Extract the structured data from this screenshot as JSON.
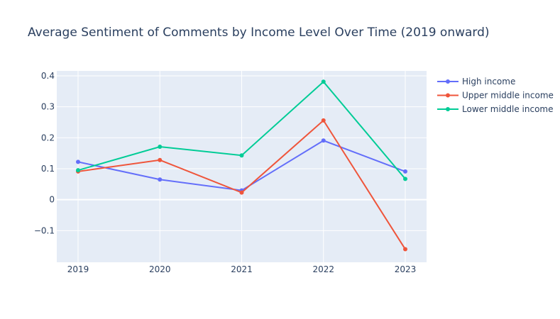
{
  "chart_data": {
    "type": "line",
    "title": "Average Sentiment of Comments by Income Level Over Time (2019 onward)",
    "xlabel": "",
    "ylabel": "",
    "x": [
      "2019",
      "2020",
      "2021",
      "2022",
      "2023"
    ],
    "ylim": [
      -0.2,
      0.42
    ],
    "yticks": [
      -0.1,
      0,
      0.1,
      0.2,
      0.3,
      0.4
    ],
    "ytick_labels": [
      "−0.1",
      "0",
      "0.1",
      "0.2",
      "0.3",
      "0.4"
    ],
    "grid": true,
    "legend_position": "top-right",
    "plot_background": "#e5ecf6",
    "series": [
      {
        "name": "High income",
        "color": "#636efa",
        "values": [
          0.122,
          0.065,
          0.03,
          0.191,
          0.091
        ]
      },
      {
        "name": "Upper middle income",
        "color": "#ef553b",
        "values": [
          0.091,
          0.128,
          0.023,
          0.256,
          -0.16
        ]
      },
      {
        "name": "Lower middle income",
        "color": "#00cc96",
        "values": [
          0.095,
          0.171,
          0.143,
          0.381,
          0.067
        ]
      }
    ]
  }
}
